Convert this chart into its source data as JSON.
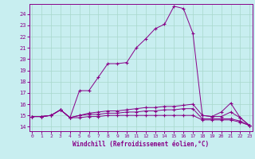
{
  "xlabel": "Windchill (Refroidissement éolien,°C)",
  "background_color": "#c8eef0",
  "grid_color": "#a8d8cc",
  "line_color": "#880088",
  "x_ticks": [
    0,
    1,
    2,
    3,
    4,
    5,
    6,
    7,
    8,
    9,
    10,
    11,
    12,
    13,
    14,
    15,
    16,
    17,
    18,
    19,
    20,
    21,
    22,
    23
  ],
  "y_ticks": [
    14,
    15,
    16,
    17,
    18,
    19,
    20,
    21,
    22,
    23,
    24
  ],
  "xlim": [
    -0.3,
    23.3
  ],
  "ylim": [
    13.6,
    24.9
  ],
  "curves": [
    [
      14.9,
      14.9,
      15.0,
      15.5,
      14.8,
      17.2,
      17.2,
      18.4,
      19.6,
      19.6,
      19.7,
      21.0,
      21.8,
      22.7,
      23.1,
      24.7,
      24.5,
      22.3,
      15.0,
      14.9,
      15.3,
      16.1,
      14.8,
      14.1
    ],
    [
      14.9,
      14.9,
      15.0,
      15.5,
      14.8,
      15.0,
      15.2,
      15.3,
      15.4,
      15.4,
      15.5,
      15.6,
      15.7,
      15.7,
      15.8,
      15.8,
      15.9,
      16.0,
      15.0,
      14.9,
      14.9,
      15.3,
      14.8,
      14.1
    ],
    [
      14.9,
      14.9,
      15.0,
      15.5,
      14.8,
      15.0,
      15.1,
      15.1,
      15.2,
      15.2,
      15.3,
      15.3,
      15.4,
      15.4,
      15.5,
      15.5,
      15.6,
      15.6,
      14.7,
      14.7,
      14.7,
      14.7,
      14.5,
      14.1
    ],
    [
      14.9,
      14.9,
      15.0,
      15.5,
      14.8,
      14.8,
      14.9,
      14.9,
      15.0,
      15.0,
      15.0,
      15.0,
      15.0,
      15.0,
      15.0,
      15.0,
      15.0,
      15.0,
      14.6,
      14.6,
      14.6,
      14.6,
      14.4,
      14.1
    ]
  ]
}
